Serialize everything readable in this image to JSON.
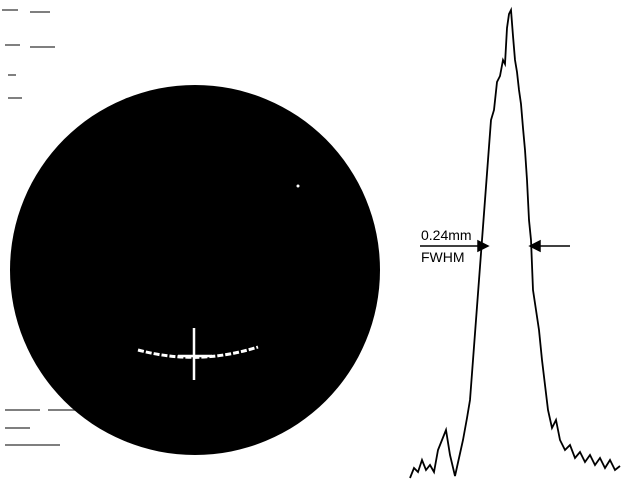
{
  "annotation": {
    "width": "0.24mm",
    "label": "FWHM"
  }
}
